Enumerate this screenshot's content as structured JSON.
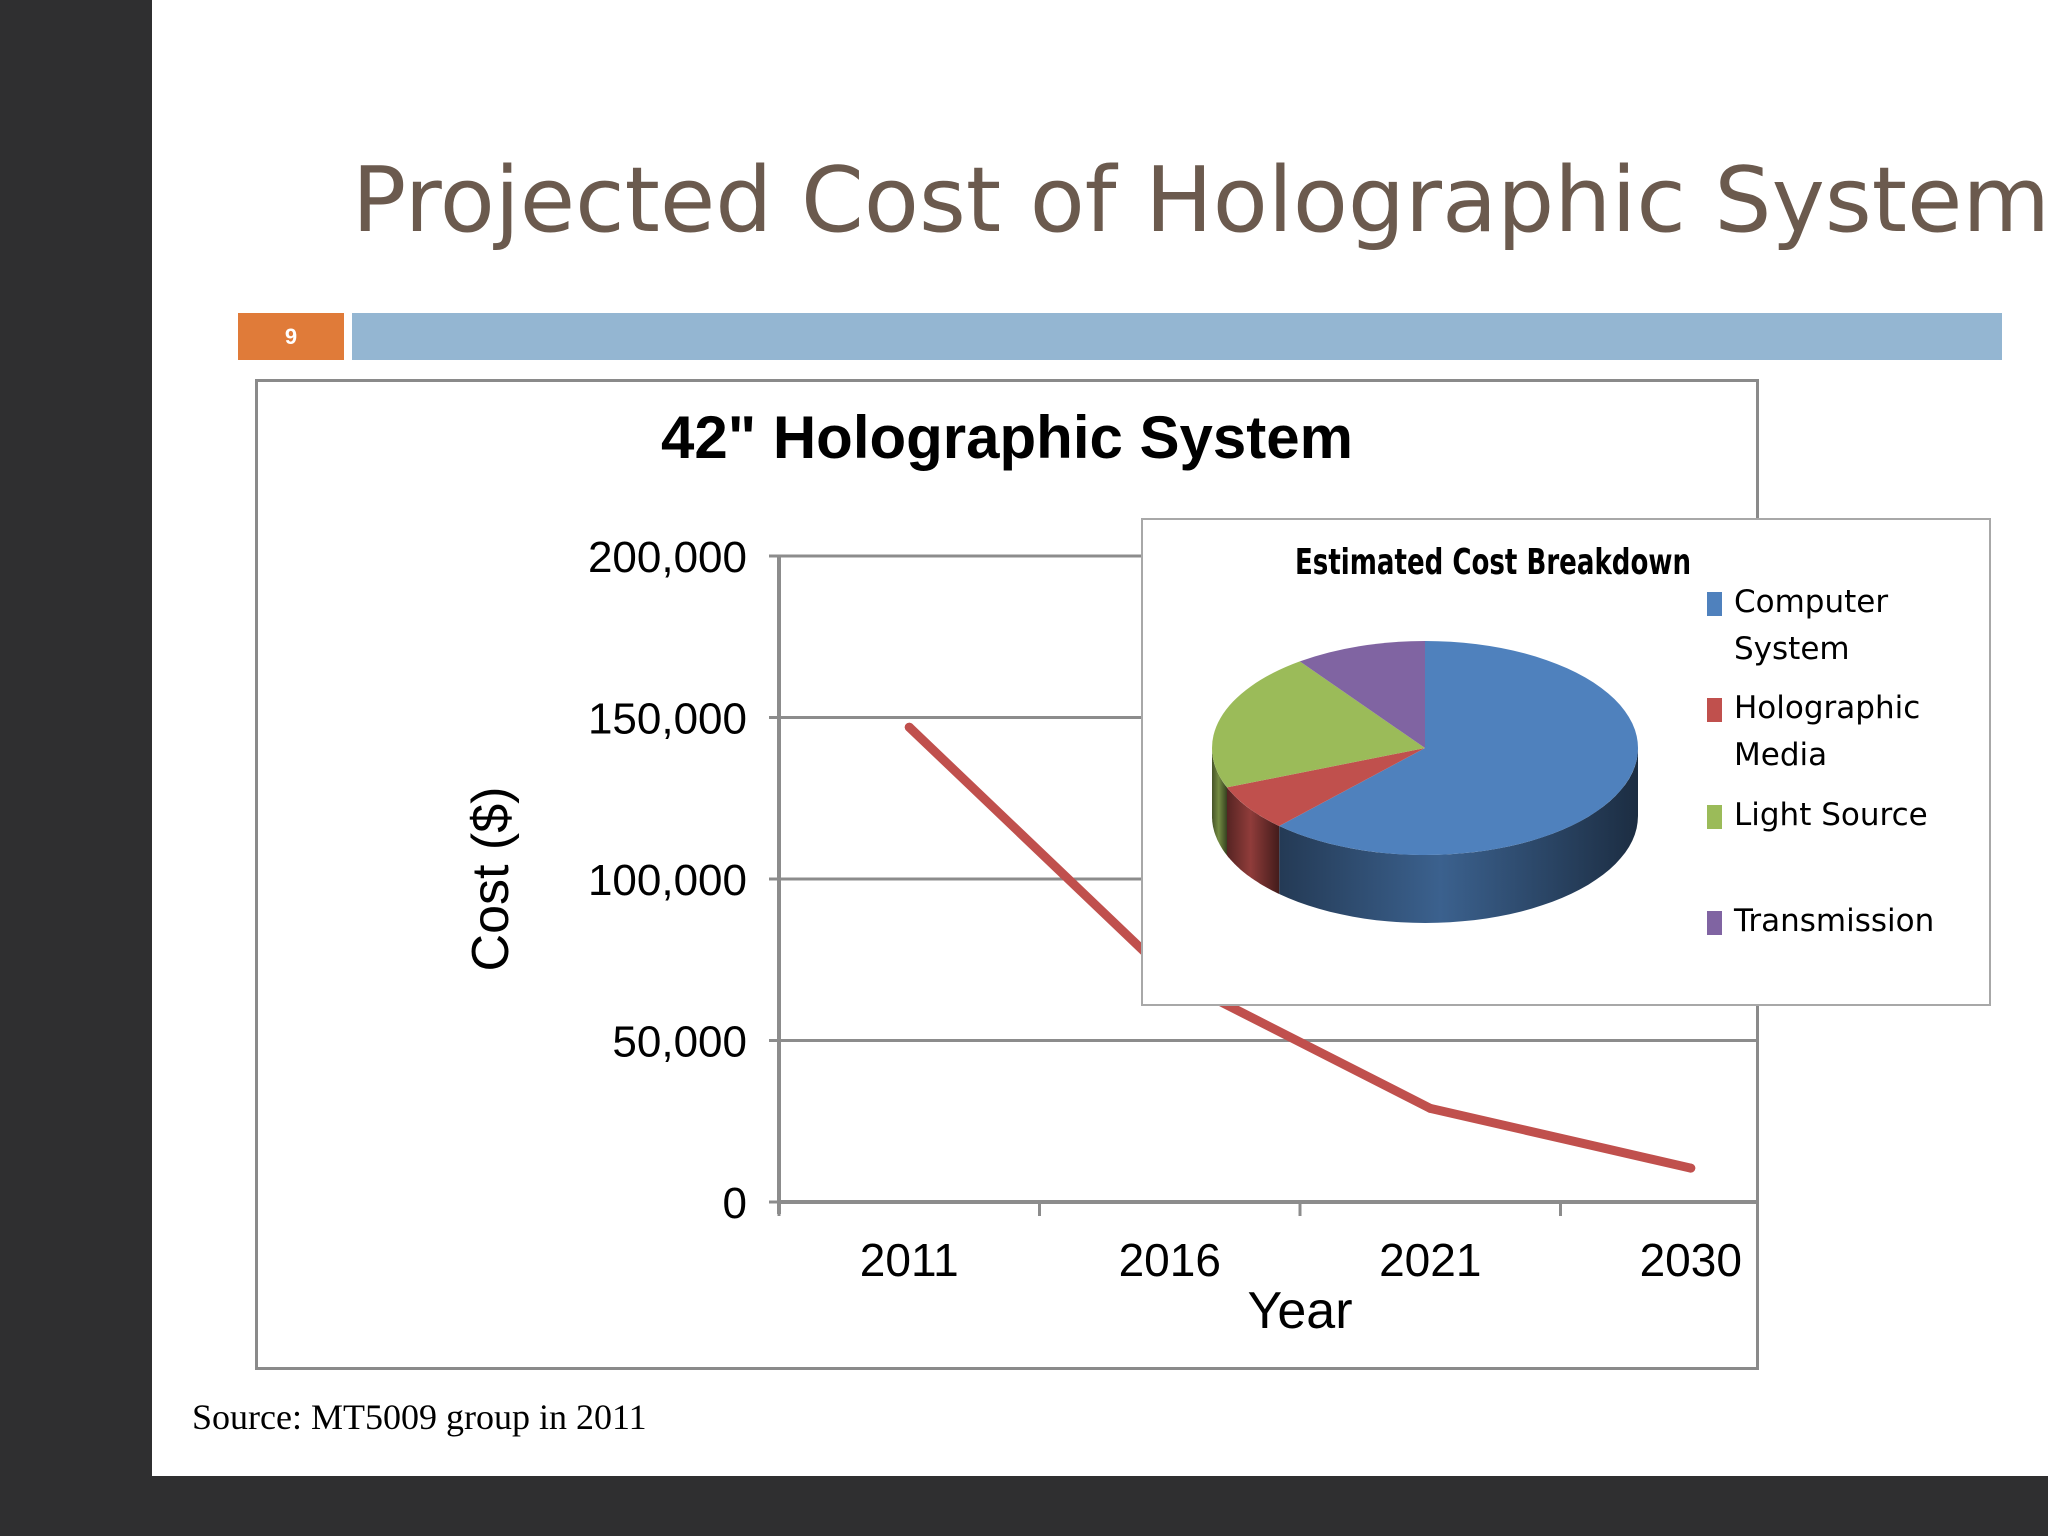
{
  "slide": {
    "title": "Projected Cost of Holographic System",
    "number": "9",
    "source": "Source: MT5009 group in 2011"
  },
  "colors": {
    "line": "#c0504d",
    "title_text": "#6b5a4e",
    "accent_orange": "#e07b39",
    "accent_blue": "#94b6d2"
  },
  "chart_data": [
    {
      "type": "line",
      "title": "42\" Holographic System",
      "xlabel": "Year",
      "ylabel": "Cost ($)",
      "categories": [
        "2011",
        "2016",
        "2021",
        "2030"
      ],
      "series": [
        {
          "name": "Cost",
          "values": [
            147000,
            70000,
            29000,
            10500
          ]
        }
      ],
      "ylim": [
        0,
        200000
      ],
      "yticks": [
        0,
        50000,
        100000,
        150000,
        200000
      ],
      "ytick_labels": [
        "0",
        "50,000",
        "100,000",
        "150,000",
        "200,000"
      ],
      "grid": true,
      "legend": "none"
    },
    {
      "type": "pie",
      "title": "Estimated Cost Breakdown",
      "legend": "right",
      "slices": [
        {
          "label": "Computer System",
          "legend_lines": [
            "Computer",
            "System"
          ],
          "value": 62,
          "color": "#4f81bd"
        },
        {
          "label": "Holographic Media",
          "legend_lines": [
            "Holographic",
            "Media"
          ],
          "value": 7,
          "color": "#c0504d"
        },
        {
          "label": "Light Source",
          "legend_lines": [
            "Light Source"
          ],
          "value": 21,
          "color": "#9bbb59"
        },
        {
          "label": "Transmission",
          "legend_lines": [
            "Transmission"
          ],
          "value": 10,
          "color": "#8064a2"
        }
      ]
    }
  ]
}
